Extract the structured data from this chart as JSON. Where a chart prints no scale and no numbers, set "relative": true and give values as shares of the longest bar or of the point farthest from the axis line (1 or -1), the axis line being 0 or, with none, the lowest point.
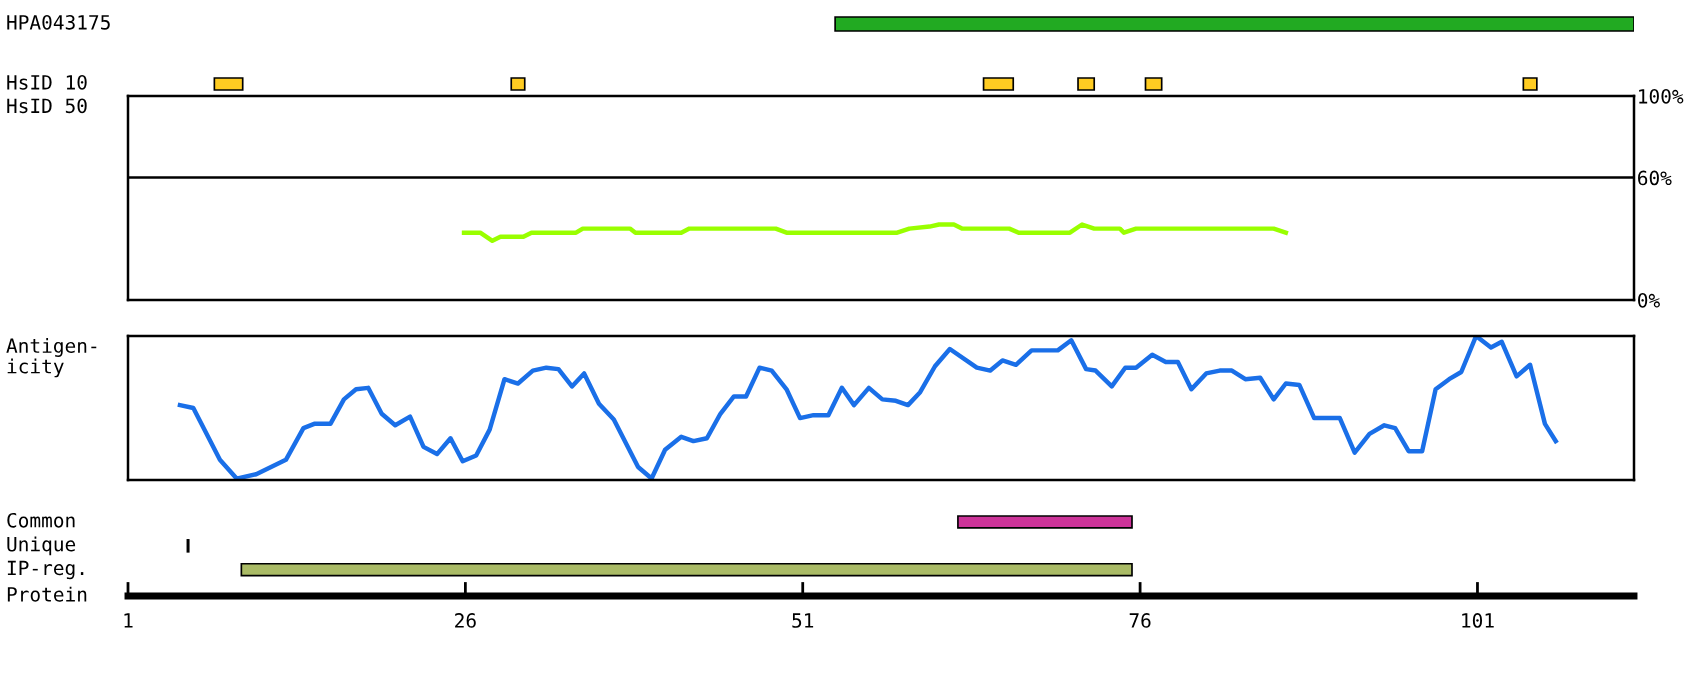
{
  "chart_data": [
    {
      "type": "bar",
      "orientation": "horizontal",
      "categories": [
        "HPA043175"
      ],
      "base": [
        53.4
      ],
      "values": [
        59.2
      ],
      "colors": [
        "#22aa22"
      ],
      "xlim": [
        1,
        112.6
      ],
      "tick_labels": false
    },
    {
      "type": "bar",
      "orientation": "horizontal",
      "categories": [
        "HsID 10"
      ],
      "series": [
        {
          "color": "#ffcc22",
          "base": [
            7.4
          ],
          "values": [
            2.1
          ]
        },
        {
          "color": "#ffcc22",
          "base": [
            29.4
          ],
          "values": [
            1.0
          ]
        },
        {
          "color": "#ffcc22",
          "base": [
            64.4
          ],
          "values": [
            2.2
          ]
        },
        {
          "color": "#ffcc22",
          "base": [
            71.4
          ],
          "values": [
            1.2
          ]
        },
        {
          "color": "#ffcc22",
          "base": [
            76.4
          ],
          "values": [
            1.2
          ]
        },
        {
          "color": "#ffcc22",
          "base": [
            104.4
          ],
          "values": [
            1.0
          ]
        }
      ],
      "xlim": [
        1,
        112.6
      ],
      "tick_labels": false
    },
    {
      "type": "line",
      "ylabel": "HsID 50",
      "xlim": [
        1,
        112.6
      ],
      "ylim": [
        0,
        100
      ],
      "yticks": [
        {
          "value": 0,
          "label": "0%"
        },
        {
          "value": 60,
          "label": "60%"
        },
        {
          "value": 100,
          "label": "100%"
        }
      ],
      "tick_labels": "y",
      "ref_lines": [
        {
          "axis": "y",
          "value": 60,
          "color": "#000000"
        }
      ],
      "series": [
        {
          "color": "#99ff00",
          "x": [
            25.9,
            27.1,
            28,
            28.6,
            30.3,
            30.9,
            34.2,
            34.7,
            38.2,
            38.6,
            42,
            42.6,
            49,
            49.8,
            58,
            58.9,
            60.4,
            61.1,
            62.2,
            62.8,
            66.3,
            67,
            70.8,
            71.7,
            72.6,
            74.5,
            74.8,
            75.7,
            85.9,
            86.8
          ],
          "values": [
            33,
            33,
            29,
            31,
            31,
            33,
            33,
            35,
            35,
            33,
            33,
            35,
            35,
            33,
            33,
            35,
            36,
            37,
            37,
            35,
            35,
            33,
            33,
            37,
            35,
            35,
            33,
            35,
            35,
            33
          ]
        }
      ]
    },
    {
      "type": "line",
      "ylabel": "Antigen-\nicity",
      "relative": true,
      "xlim": [
        1,
        112.6
      ],
      "tick_labels": false,
      "series": [
        {
          "color": "#1a6fe8",
          "x": [
            4.85,
            5.84,
            7.81,
            9.05,
            10.5,
            12.7,
            14.0,
            14.8,
            16.0,
            17.0,
            17.9,
            18.8,
            19.8,
            20.8,
            21.9,
            22.9,
            23.9,
            24.9,
            25.8,
            26.8,
            27.8,
            28.9,
            29.9,
            31.0,
            32.0,
            32.9,
            33.9,
            34.8,
            35.9,
            37.0,
            38.8,
            39.8,
            40.8,
            42.0,
            42.9,
            43.9,
            44.9,
            45.9,
            46.8,
            47.8,
            48.7,
            49.8,
            50.8,
            51.8,
            52.9,
            53.9,
            54.8,
            55.9,
            56.9,
            57.9,
            58.8,
            59.7,
            60.8,
            61.9,
            63.9,
            64.9,
            65.8,
            66.8,
            67.96,
            69.9,
            70.9,
            72.0,
            72.7,
            73.9,
            74.9,
            75.7,
            76.9,
            77.9,
            78.8,
            79.8,
            80.9,
            81.9,
            82.8,
            83.8,
            84.9,
            85.9,
            86.8,
            87.8,
            88.9,
            90.8,
            91.9,
            93.0,
            94.1,
            94.9,
            95.9,
            96.9,
            97.9,
            98.9,
            99.8,
            100.9,
            102.0,
            102.8,
            103.9,
            104.9,
            106.0,
            106.8
          ],
          "values": [
            0.52,
            0.5,
            0.14,
            0.01,
            0.04,
            0.14,
            0.36,
            0.39,
            0.39,
            0.56,
            0.63,
            0.64,
            0.46,
            0.38,
            0.44,
            0.23,
            0.18,
            0.29,
            0.13,
            0.17,
            0.35,
            0.7,
            0.67,
            0.76,
            0.78,
            0.77,
            0.65,
            0.74,
            0.53,
            0.42,
            0.09,
            0.01,
            0.21,
            0.3,
            0.27,
            0.29,
            0.46,
            0.58,
            0.58,
            0.78,
            0.76,
            0.63,
            0.43,
            0.45,
            0.45,
            0.64,
            0.52,
            0.64,
            0.56,
            0.55,
            0.52,
            0.61,
            0.79,
            0.91,
            0.78,
            0.76,
            0.83,
            0.8,
            0.9,
            0.9,
            0.97,
            0.77,
            0.76,
            0.65,
            0.78,
            0.78,
            0.87,
            0.82,
            0.82,
            0.63,
            0.74,
            0.76,
            0.76,
            0.7,
            0.71,
            0.56,
            0.67,
            0.66,
            0.43,
            0.43,
            0.19,
            0.32,
            0.38,
            0.36,
            0.2,
            0.2,
            0.63,
            0.7,
            0.75,
            1.0,
            0.92,
            0.96,
            0.72,
            0.8,
            0.39,
            0.27
          ]
        }
      ]
    },
    {
      "type": "bar",
      "orientation": "horizontal",
      "categories": [
        "Common",
        "Unique",
        "IP-reg."
      ],
      "base": [
        62.5,
        5.4,
        9.4
      ],
      "values": [
        12.9,
        0.1,
        66.0
      ],
      "colors": [
        "#cc3399",
        "#000000",
        "#aabb66"
      ],
      "xlabel": "Protein",
      "xlim": [
        1,
        112.6
      ],
      "xticks": [
        1,
        26,
        51,
        76,
        101
      ],
      "tick_labels": "x"
    }
  ]
}
